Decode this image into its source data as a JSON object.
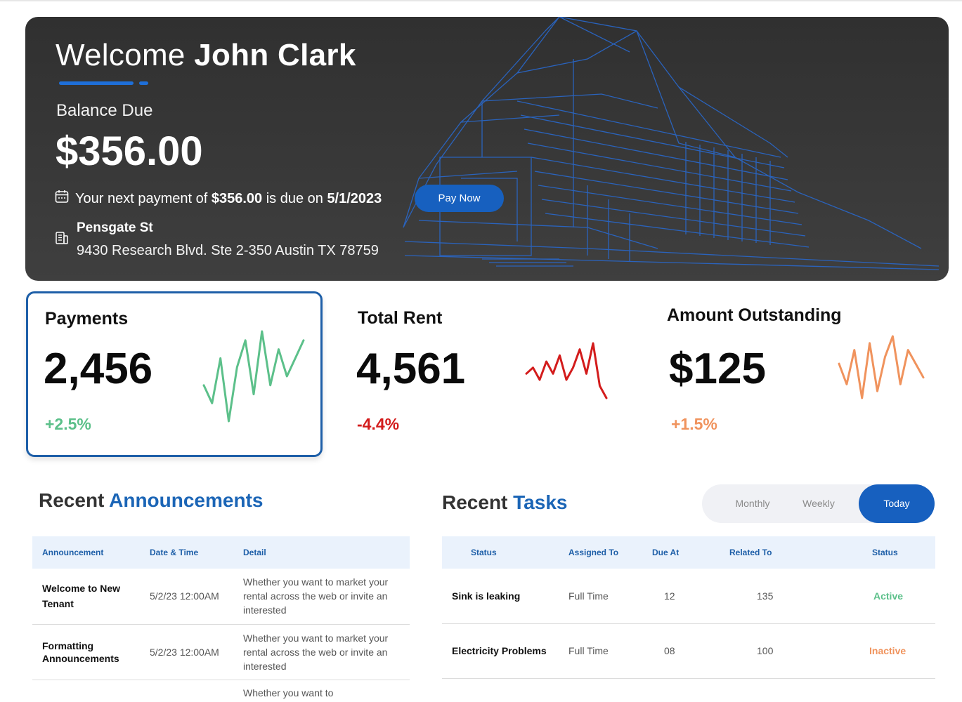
{
  "hero": {
    "welcome_prefix": "Welcome",
    "user_name": "John Clark",
    "balance_label": "Balance Due",
    "balance_amount": "$356.00",
    "next_payment_prefix": "Your next payment of",
    "next_payment_amount": "$356.00",
    "next_payment_mid": "is due on",
    "next_payment_date": "5/1/2023",
    "pay_button": "Pay Now",
    "street": "Pensgate St",
    "address": "9430 Research Blvd. Ste 2-350 Austin TX 78759",
    "icons": [
      "calendar-icon",
      "building-icon"
    ]
  },
  "stats": [
    {
      "title": "Payments",
      "value": "2,456",
      "change": "+2.5%",
      "color": "#5cc08a",
      "trend": [
        4,
        2,
        7,
        0,
        6,
        9,
        3,
        10,
        4,
        8,
        5,
        7,
        9
      ]
    },
    {
      "title": "Total Rent",
      "value": "4,561",
      "change": "-4.4%",
      "color": "#d31c1c",
      "trend": [
        5,
        6,
        4,
        7,
        5,
        8,
        4,
        6,
        9,
        5,
        10,
        3,
        1
      ]
    },
    {
      "title": "Amount Outstanding",
      "value": "$125",
      "change": "+1.5%",
      "color": "#f0935d",
      "trend": [
        6,
        3,
        8,
        1,
        9,
        2,
        7,
        10,
        3,
        8,
        6,
        4
      ]
    }
  ],
  "announcements": {
    "title_prefix": "Recent",
    "title_highlight": "Announcements",
    "columns": [
      "Announcement",
      "Date & Time",
      "Detail"
    ],
    "rows": [
      {
        "title": "Welcome to New Tenant",
        "date": "5/2/23 12:00AM",
        "detail": "Whether you want to market your rental across the web or invite an interested"
      },
      {
        "title": "Formatting Announcements",
        "date": "5/2/23 12:00AM",
        "detail": "Whether you want to market your rental across the web or invite an interested"
      },
      {
        "title": "",
        "date": "",
        "detail": "Whether you want to"
      }
    ]
  },
  "tasks": {
    "title_prefix": "Recent",
    "title_highlight": "Tasks",
    "toggle": [
      "Monthly",
      "Weekly",
      "Today"
    ],
    "toggle_selected": "Today",
    "columns": [
      "Status",
      "Assigned To",
      "Due At",
      "Related To",
      "Status"
    ],
    "rows": [
      {
        "title": "Sink is leaking",
        "assigned": "Full Time",
        "due": "12",
        "related": "135",
        "status": "Active"
      },
      {
        "title": "Electricity Problems",
        "assigned": "Full Time",
        "due": "08",
        "related": "100",
        "status": "Inactive"
      }
    ]
  }
}
